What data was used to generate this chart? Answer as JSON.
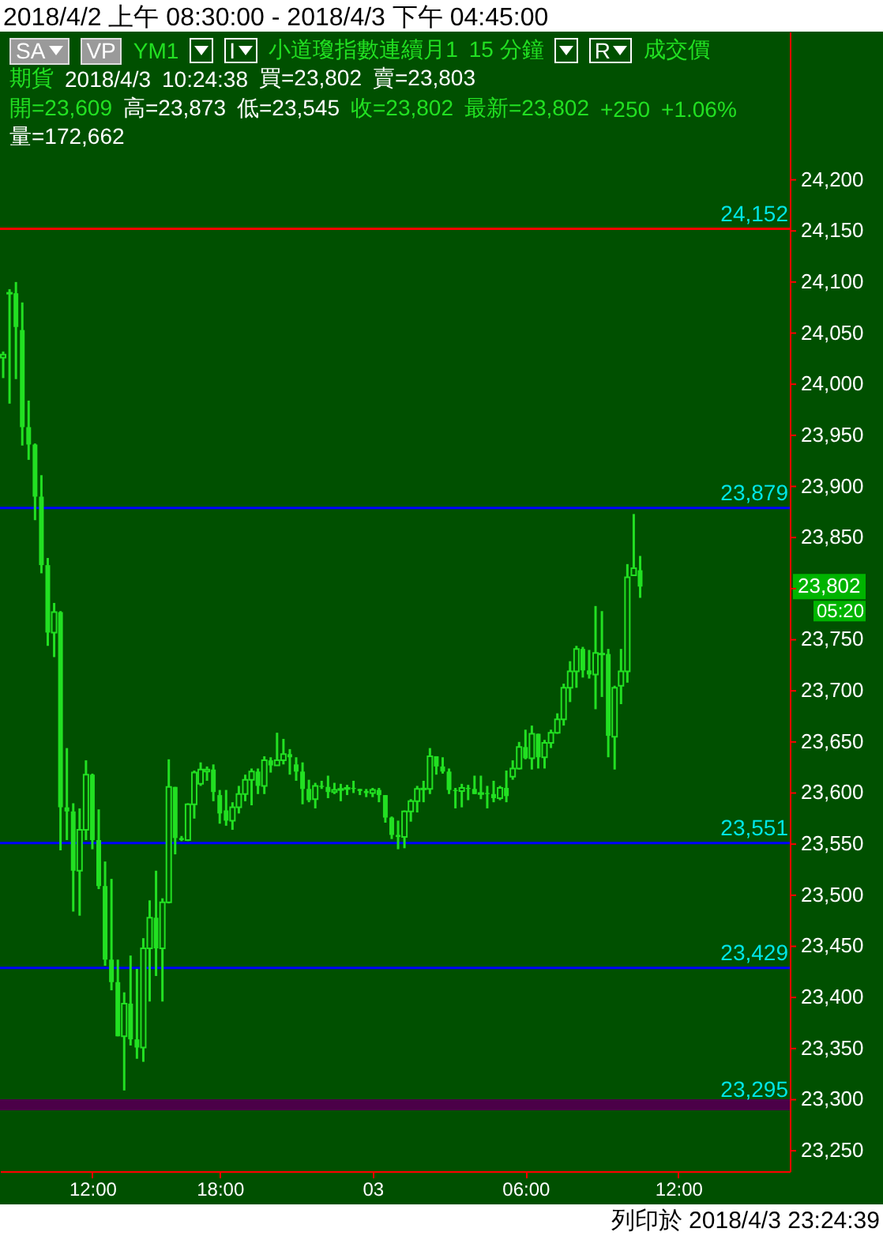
{
  "chart_data": {
    "type": "candlestick",
    "title": "2018/4/2 上午 08:30:00 - 2018/4/3 下午 04:45:00",
    "color": "#22e022",
    "categories": [
      null,
      null,
      null,
      null,
      null,
      null,
      null,
      null,
      null,
      null,
      null,
      null,
      null,
      null,
      "12:00",
      null,
      null,
      null,
      null,
      null,
      null,
      null,
      null,
      null,
      null,
      null,
      null,
      null,
      null,
      null,
      null,
      null,
      null,
      null,
      "18:00",
      null,
      null,
      null,
      null,
      null,
      null,
      null,
      null,
      null,
      null,
      null,
      null,
      null,
      null,
      null,
      null,
      null,
      null,
      null,
      null,
      null,
      null,
      null,
      "03",
      null,
      null,
      null,
      null,
      null,
      null,
      null,
      null,
      null,
      null,
      null,
      null,
      null,
      null,
      null,
      null,
      null,
      null,
      null,
      null,
      null,
      null,
      null,
      "06:00",
      null,
      null,
      null,
      null,
      null,
      null,
      null,
      null,
      null,
      null,
      null,
      null,
      null,
      null,
      null,
      null,
      null,
      null,
      null,
      null,
      null,
      null,
      null,
      "12:00",
      null,
      null,
      null,
      null,
      null,
      null,
      null,
      null,
      null,
      null,
      null,
      null,
      null,
      null,
      null,
      null,
      null
    ],
    "ohlc": [
      [
        24026,
        24032,
        24006,
        24029
      ],
      [
        24089,
        24093,
        23981,
        24089
      ],
      [
        24089,
        24100,
        24005,
        24056
      ],
      [
        24053,
        24080,
        23940,
        23958
      ],
      [
        23958,
        23984,
        23926,
        23941
      ],
      [
        23941,
        23942,
        23867,
        23890
      ],
      [
        23890,
        23911,
        23815,
        23823
      ],
      [
        23823,
        23830,
        23744,
        23757
      ],
      [
        23757,
        23786,
        23733,
        23777
      ],
      [
        23777,
        23778,
        23544,
        23586
      ],
      [
        23586,
        23644,
        23554,
        23582
      ],
      [
        23582,
        23590,
        23484,
        23524
      ],
      [
        23524,
        23585,
        23480,
        23564
      ],
      [
        23564,
        23632,
        23554,
        23618
      ],
      [
        23618,
        23619,
        23545,
        23554
      ],
      [
        23554,
        23584,
        23506,
        23509
      ],
      [
        23509,
        23533,
        23431,
        23437
      ],
      [
        23437,
        23516,
        23407,
        23415
      ],
      [
        23415,
        23437,
        23362,
        23362
      ],
      [
        23362,
        23405,
        23309,
        23394
      ],
      [
        23394,
        23441,
        23353,
        23359
      ],
      [
        23359,
        23428,
        23340,
        23351
      ],
      [
        23351,
        23458,
        23337,
        23448
      ],
      [
        23448,
        23495,
        23396,
        23478
      ],
      [
        23478,
        23524,
        23421,
        23448
      ],
      [
        23448,
        23497,
        23396,
        23493
      ],
      [
        23493,
        23633,
        23492,
        23606
      ],
      [
        23606,
        23606,
        23540,
        23556
      ],
      [
        23556,
        23558,
        23553,
        23554
      ],
      [
        23554,
        23590,
        23553,
        23589
      ],
      [
        23589,
        23622,
        23575,
        23620
      ],
      [
        23609,
        23630,
        23607,
        23623
      ],
      [
        23621,
        23626,
        23612,
        23623
      ],
      [
        23623,
        23628,
        23592,
        23601
      ],
      [
        23598,
        23603,
        23570,
        23580
      ],
      [
        23583,
        23603,
        23568,
        23573
      ],
      [
        23573,
        23591,
        23564,
        23586
      ],
      [
        23586,
        23607,
        23580,
        23599
      ],
      [
        23599,
        23618,
        23592,
        23613
      ],
      [
        23613,
        23624,
        23588,
        23621
      ],
      [
        23621,
        23624,
        23599,
        23607
      ],
      [
        23607,
        23636,
        23599,
        23632
      ],
      [
        23632,
        23635,
        23620,
        23627
      ],
      [
        23627,
        23659,
        23627,
        23632
      ],
      [
        23632,
        23653,
        23628,
        23638
      ],
      [
        23638,
        23643,
        23618,
        23635
      ],
      [
        23628,
        23635,
        23612,
        23621
      ],
      [
        23621,
        23630,
        23589,
        23604
      ],
      [
        23604,
        23613,
        23591,
        23593
      ],
      [
        23594,
        23610,
        23585,
        23607
      ],
      [
        23607,
        23612,
        23604,
        23606
      ],
      [
        23606,
        23617,
        23595,
        23601
      ],
      [
        23601,
        23610,
        23599,
        23603
      ],
      [
        23603,
        23609,
        23592,
        23604
      ],
      [
        23604,
        23608,
        23598,
        23605
      ],
      [
        23605,
        23612,
        23600,
        23604
      ],
      [
        23604,
        23604,
        23598,
        23602
      ],
      [
        23602,
        23604,
        23596,
        23600
      ],
      [
        23600,
        23605,
        23596,
        23603
      ],
      [
        23603,
        23605,
        23591,
        23598
      ],
      [
        23598,
        23598,
        23571,
        23576
      ],
      [
        23576,
        23577,
        23555,
        23559
      ],
      [
        23559,
        23573,
        23545,
        23557
      ],
      [
        23557,
        23583,
        23546,
        23582
      ],
      [
        23582,
        23594,
        23572,
        23592
      ],
      [
        23592,
        23607,
        23581,
        23604
      ],
      [
        23604,
        23612,
        23591,
        23604
      ],
      [
        23604,
        23644,
        23599,
        23636
      ],
      [
        23636,
        23636,
        23618,
        23626
      ],
      [
        23626,
        23635,
        23619,
        23621
      ],
      [
        23621,
        23624,
        23599,
        23603
      ],
      [
        23603,
        23605,
        23585,
        23602
      ],
      [
        23602,
        23609,
        23586,
        23605
      ],
      [
        23605,
        23608,
        23593,
        23604
      ],
      [
        23604,
        23617,
        23599,
        23599
      ],
      [
        23599,
        23617,
        23594,
        23600
      ],
      [
        23600,
        23607,
        23585,
        23599
      ],
      [
        23599,
        23612,
        23591,
        23595
      ],
      [
        23595,
        23607,
        23593,
        23605
      ],
      [
        23605,
        23622,
        23591,
        23597
      ],
      [
        23616,
        23632,
        23613,
        23624
      ],
      [
        23624,
        23650,
        23623,
        23645
      ],
      [
        23645,
        23662,
        23633,
        23634
      ],
      [
        23634,
        23666,
        23623,
        23658
      ],
      [
        23658,
        23658,
        23624,
        23635
      ],
      [
        23635,
        23652,
        23624,
        23649
      ],
      [
        23649,
        23662,
        23644,
        23659
      ],
      [
        23659,
        23678,
        23658,
        23672
      ],
      [
        23672,
        23707,
        23666,
        23703
      ],
      [
        23703,
        23729,
        23689,
        23719
      ],
      [
        23719,
        23744,
        23703,
        23741
      ],
      [
        23741,
        23743,
        23713,
        23720
      ],
      [
        23720,
        23740,
        23712,
        23716
      ],
      [
        23716,
        23783,
        23682,
        23737
      ],
      [
        23736,
        23778,
        23694,
        23736
      ],
      [
        23736,
        23741,
        23635,
        23656
      ],
      [
        23655,
        23705,
        23623,
        23703
      ],
      [
        23705,
        23741,
        23687,
        23719
      ],
      [
        23719,
        23824,
        23708,
        23811
      ],
      [
        23813,
        23873,
        23813,
        23820
      ],
      [
        23818,
        23832,
        23791,
        23802
      ],
      null,
      null,
      null,
      null,
      null,
      null,
      null,
      null,
      null,
      null,
      null,
      null,
      null,
      null,
      null,
      null,
      null,
      null,
      null,
      null,
      null,
      null,
      null
    ],
    "ylim": [
      23230,
      24345
    ],
    "yticks": [
      {
        "value": 23250,
        "label": "23,250"
      },
      {
        "value": 23300,
        "label": "23,300"
      },
      {
        "value": 23350,
        "label": "23,350"
      },
      {
        "value": 23400,
        "label": "23,400"
      },
      {
        "value": 23450,
        "label": "23,450"
      },
      {
        "value": 23500,
        "label": "23,500"
      },
      {
        "value": 23550,
        "label": "23,550"
      },
      {
        "value": 23600,
        "label": "23,600"
      },
      {
        "value": 23650,
        "label": "23,650"
      },
      {
        "value": 23700,
        "label": "23,700"
      },
      {
        "value": 23750,
        "label": "23,750"
      },
      {
        "value": 23800,
        "label": null
      },
      {
        "value": 23850,
        "label": "23,850"
      },
      {
        "value": 23900,
        "label": "23,900"
      },
      {
        "value": 23950,
        "label": "23,950"
      },
      {
        "value": 24000,
        "label": "24,000"
      },
      {
        "value": 24050,
        "label": "24,050"
      },
      {
        "value": 24100,
        "label": "24,100"
      },
      {
        "value": 24150,
        "label": "24,150"
      },
      {
        "value": 24200,
        "label": "24,200"
      }
    ],
    "ref_lines": [
      {
        "axis": "y",
        "value": 24152,
        "label": "24,152",
        "color": "#ff0000"
      },
      {
        "axis": "y",
        "value": 23879,
        "label": "23,879",
        "color": "#0000ff"
      },
      {
        "axis": "y",
        "value": 23551,
        "label": "23,551",
        "color": "#0000ff"
      },
      {
        "axis": "y",
        "value": 23429,
        "label": "23,429",
        "color": "#0000ff"
      },
      {
        "axis": "y",
        "value": 23295,
        "label": "23,295",
        "color": "#4b0048"
      }
    ],
    "annotations": [
      "SA",
      "VP",
      "YM1",
      "I",
      "小道瓊指數連續月1",
      "15 分鐘",
      "R",
      "成交價",
      "期貨",
      "2018/4/3",
      "10:24:38",
      "買=23,802",
      "賣=23,803",
      "開=23,609",
      "高=23,873",
      "低=23,545",
      "收=23,802",
      "最新=23,802",
      "+250",
      "+1.06%",
      "量=172,662",
      "23,802",
      "05:20",
      "列印於 2018/4/3 23:24:39"
    ]
  }
}
